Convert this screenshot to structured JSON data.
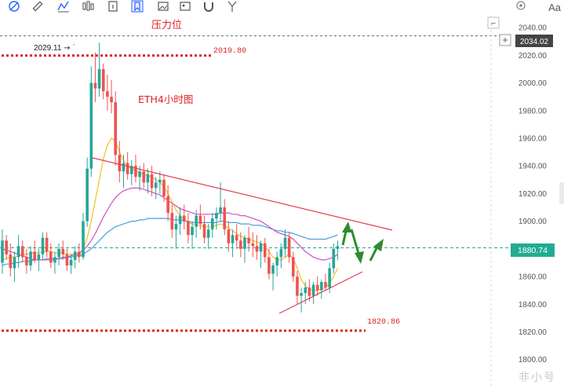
{
  "toolbar": {
    "icons": [
      "fib-icon",
      "ruler-icon",
      "pattern-icon",
      "bars-icon",
      "note-icon",
      "bookmark-icon",
      "image-icon",
      "magnet-icon",
      "fork-icon"
    ],
    "aa_label": "Aa"
  },
  "annotations": {
    "resistance_label": "压力位",
    "chart_label": "ETH4小时图",
    "high_marker": "2029.11",
    "resistance_value": "2019.80",
    "support_value": "1820.86"
  },
  "price_tags": {
    "top": "2034.02",
    "current": "1880.74"
  },
  "watermark": "非小号",
  "colors": {
    "up": "#26a69a",
    "down": "#ef5350",
    "red_dotted": "#e02020",
    "trend": "#e04050",
    "ma_yellow": "#f0c020",
    "ma_blue": "#4aa0d8",
    "ma_magenta": "#d050c0",
    "ma_green": "#70d070",
    "arrow": "#2e8b2e"
  },
  "chart_data": {
    "type": "candlestick",
    "y_axis_side": "right",
    "ylim": [
      1793,
      2052
    ],
    "y_ticks": [
      1800,
      1820,
      1840,
      1860,
      1880,
      1900,
      1920,
      1940,
      1960,
      1980,
      2000,
      2020,
      2040
    ],
    "y_tick_labels": [
      "1800.00",
      "1820.00",
      "1840.00",
      "1860.00",
      "1880.00",
      "1900.00",
      "1920.00",
      "1940.00",
      "1960.00",
      "1980.00",
      "2000.00",
      "2020.00",
      "2040.00"
    ],
    "horizontal_levels": [
      {
        "name": "resistance",
        "value": 2019.8,
        "style": "red-dotted"
      },
      {
        "name": "support",
        "value": 1820.86,
        "style": "red-dotted"
      },
      {
        "name": "current",
        "value": 1880.74,
        "style": "green-dashed"
      },
      {
        "name": "top-price",
        "value": 2034.02,
        "style": "gray-dashed"
      }
    ],
    "candles": [
      [
        1870,
        1894,
        1862,
        1886
      ],
      [
        1886,
        1890,
        1872,
        1876
      ],
      [
        1876,
        1884,
        1860,
        1866
      ],
      [
        1866,
        1878,
        1856,
        1874
      ],
      [
        1874,
        1890,
        1866,
        1882
      ],
      [
        1882,
        1886,
        1870,
        1874
      ],
      [
        1874,
        1880,
        1862,
        1868
      ],
      [
        1868,
        1882,
        1864,
        1878
      ],
      [
        1878,
        1886,
        1870,
        1872
      ],
      [
        1872,
        1880,
        1864,
        1876
      ],
      [
        1876,
        1892,
        1872,
        1888
      ],
      [
        1888,
        1892,
        1874,
        1878
      ],
      [
        1878,
        1884,
        1866,
        1870
      ],
      [
        1870,
        1878,
        1862,
        1874
      ],
      [
        1874,
        1884,
        1868,
        1880
      ],
      [
        1880,
        1886,
        1872,
        1876
      ],
      [
        1876,
        1880,
        1864,
        1868
      ],
      [
        1868,
        1876,
        1862,
        1872
      ],
      [
        1872,
        1882,
        1866,
        1878
      ],
      [
        1878,
        1884,
        1870,
        1874
      ],
      [
        1874,
        1906,
        1872,
        1900
      ],
      [
        1900,
        1946,
        1896,
        1938
      ],
      [
        1938,
        2012,
        1932,
        2000
      ],
      [
        2000,
        2022,
        1986,
        1996
      ],
      [
        1996,
        2029,
        1990,
        2010
      ],
      [
        2010,
        2014,
        1988,
        1994
      ],
      [
        1994,
        2006,
        1980,
        1990
      ],
      [
        1990,
        2002,
        1978,
        1986
      ],
      [
        1986,
        1994,
        1940,
        1948
      ],
      [
        1948,
        1958,
        1928,
        1936
      ],
      [
        1936,
        1948,
        1924,
        1942
      ],
      [
        1942,
        1950,
        1930,
        1934
      ],
      [
        1934,
        1944,
        1926,
        1940
      ],
      [
        1940,
        1948,
        1928,
        1932
      ],
      [
        1932,
        1940,
        1922,
        1936
      ],
      [
        1936,
        1942,
        1924,
        1928
      ],
      [
        1928,
        1938,
        1920,
        1934
      ],
      [
        1934,
        1940,
        1918,
        1924
      ],
      [
        1924,
        1932,
        1916,
        1928
      ],
      [
        1928,
        1936,
        1920,
        1930
      ],
      [
        1930,
        1934,
        1914,
        1918
      ],
      [
        1918,
        1926,
        1900,
        1906
      ],
      [
        1906,
        1912,
        1888,
        1894
      ],
      [
        1894,
        1904,
        1880,
        1898
      ],
      [
        1898,
        1910,
        1890,
        1904
      ],
      [
        1904,
        1912,
        1894,
        1900
      ],
      [
        1900,
        1906,
        1884,
        1890
      ],
      [
        1890,
        1900,
        1880,
        1896
      ],
      [
        1896,
        1908,
        1888,
        1904
      ],
      [
        1904,
        1912,
        1894,
        1898
      ],
      [
        1898,
        1904,
        1884,
        1888
      ],
      [
        1888,
        1898,
        1880,
        1894
      ],
      [
        1894,
        1906,
        1888,
        1902
      ],
      [
        1902,
        1910,
        1894,
        1906
      ],
      [
        1906,
        1928,
        1900,
        1910
      ],
      [
        1910,
        1916,
        1890,
        1894
      ],
      [
        1894,
        1900,
        1878,
        1884
      ],
      [
        1884,
        1894,
        1874,
        1890
      ],
      [
        1890,
        1898,
        1880,
        1886
      ],
      [
        1886,
        1892,
        1874,
        1880
      ],
      [
        1880,
        1890,
        1870,
        1888
      ],
      [
        1888,
        1896,
        1878,
        1884
      ],
      [
        1884,
        1892,
        1874,
        1882
      ],
      [
        1882,
        1890,
        1872,
        1878
      ],
      [
        1878,
        1886,
        1866,
        1884
      ],
      [
        1884,
        1888,
        1870,
        1874
      ],
      [
        1874,
        1880,
        1858,
        1862
      ],
      [
        1862,
        1870,
        1850,
        1868
      ],
      [
        1868,
        1878,
        1860,
        1874
      ],
      [
        1874,
        1884,
        1866,
        1880
      ],
      [
        1880,
        1894,
        1874,
        1888
      ],
      [
        1888,
        1892,
        1870,
        1874
      ],
      [
        1874,
        1878,
        1856,
        1860
      ],
      [
        1860,
        1864,
        1840,
        1846
      ],
      [
        1846,
        1852,
        1834,
        1848
      ],
      [
        1848,
        1856,
        1840,
        1852
      ],
      [
        1852,
        1858,
        1842,
        1846
      ],
      [
        1846,
        1856,
        1840,
        1854
      ],
      [
        1854,
        1860,
        1846,
        1850
      ],
      [
        1850,
        1858,
        1844,
        1856
      ],
      [
        1856,
        1862,
        1850,
        1852
      ],
      [
        1852,
        1870,
        1848,
        1866
      ],
      [
        1866,
        1884,
        1862,
        1880
      ],
      [
        1880,
        1886,
        1872,
        1882
      ]
    ],
    "moving_averages": [
      {
        "color": "ma_yellow",
        "values": [
          1872,
          1873,
          1874,
          1874,
          1875,
          1876,
          1876,
          1877,
          1877,
          1877,
          1878,
          1878,
          1878,
          1877,
          1877,
          1877,
          1876,
          1876,
          1876,
          1876,
          1880,
          1888,
          1900,
          1915,
          1930,
          1945,
          1955,
          1960,
          1958,
          1950,
          1944,
          1940,
          1938,
          1936,
          1935,
          1934,
          1933,
          1932,
          1930,
          1928,
          1925,
          1920,
          1914,
          1908,
          1904,
          1901,
          1899,
          1898,
          1897,
          1897,
          1896,
          1896,
          1896,
          1897,
          1898,
          1897,
          1895,
          1893,
          1891,
          1889,
          1888,
          1887,
          1886,
          1885,
          1884,
          1882,
          1878,
          1874,
          1872,
          1872,
          1874,
          1876,
          1873,
          1866,
          1858,
          1853,
          1851,
          1850,
          1850,
          1851,
          1852,
          1855,
          1860,
          1866
        ]
      },
      {
        "color": "ma_blue",
        "values": [
          1868,
          1869,
          1869,
          1870,
          1870,
          1871,
          1871,
          1871,
          1872,
          1872,
          1872,
          1873,
          1873,
          1873,
          1873,
          1874,
          1874,
          1874,
          1875,
          1875,
          1876,
          1878,
          1880,
          1883,
          1886,
          1889,
          1892,
          1894,
          1896,
          1897,
          1898,
          1899,
          1900,
          1900,
          1901,
          1901,
          1902,
          1902,
          1902,
          1902,
          1902,
          1902,
          1901,
          1901,
          1901,
          1900,
          1900,
          1899,
          1899,
          1899,
          1899,
          1899,
          1899,
          1899,
          1900,
          1900,
          1899,
          1899,
          1899,
          1898,
          1898,
          1898,
          1897,
          1897,
          1897,
          1896,
          1895,
          1894,
          1893,
          1893,
          1892,
          1892,
          1891,
          1890,
          1889,
          1888,
          1887,
          1887,
          1887,
          1887,
          1887,
          1888,
          1889,
          1890
        ]
      },
      {
        "color": "ma_magenta",
        "values": [
          1880,
          1879,
          1878,
          1877,
          1876,
          1875,
          1874,
          1873,
          1872,
          1872,
          1872,
          1872,
          1872,
          1872,
          1873,
          1873,
          1874,
          1875,
          1876,
          1877,
          1879,
          1882,
          1886,
          1891,
          1897,
          1903,
          1908,
          1913,
          1917,
          1920,
          1922,
          1923,
          1924,
          1924,
          1924,
          1923,
          1922,
          1921,
          1920,
          1919,
          1917,
          1915,
          1913,
          1911,
          1909,
          1908,
          1907,
          1906,
          1905,
          1905,
          1905,
          1905,
          1905,
          1905,
          1906,
          1906,
          1906,
          1905,
          1905,
          1904,
          1904,
          1903,
          1902,
          1901,
          1900,
          1898,
          1896,
          1894,
          1892,
          1891,
          1890,
          1889,
          1887,
          1884,
          1881,
          1878,
          1876,
          1874,
          1873,
          1872,
          1872,
          1873,
          1874,
          1876
        ]
      }
    ]
  }
}
